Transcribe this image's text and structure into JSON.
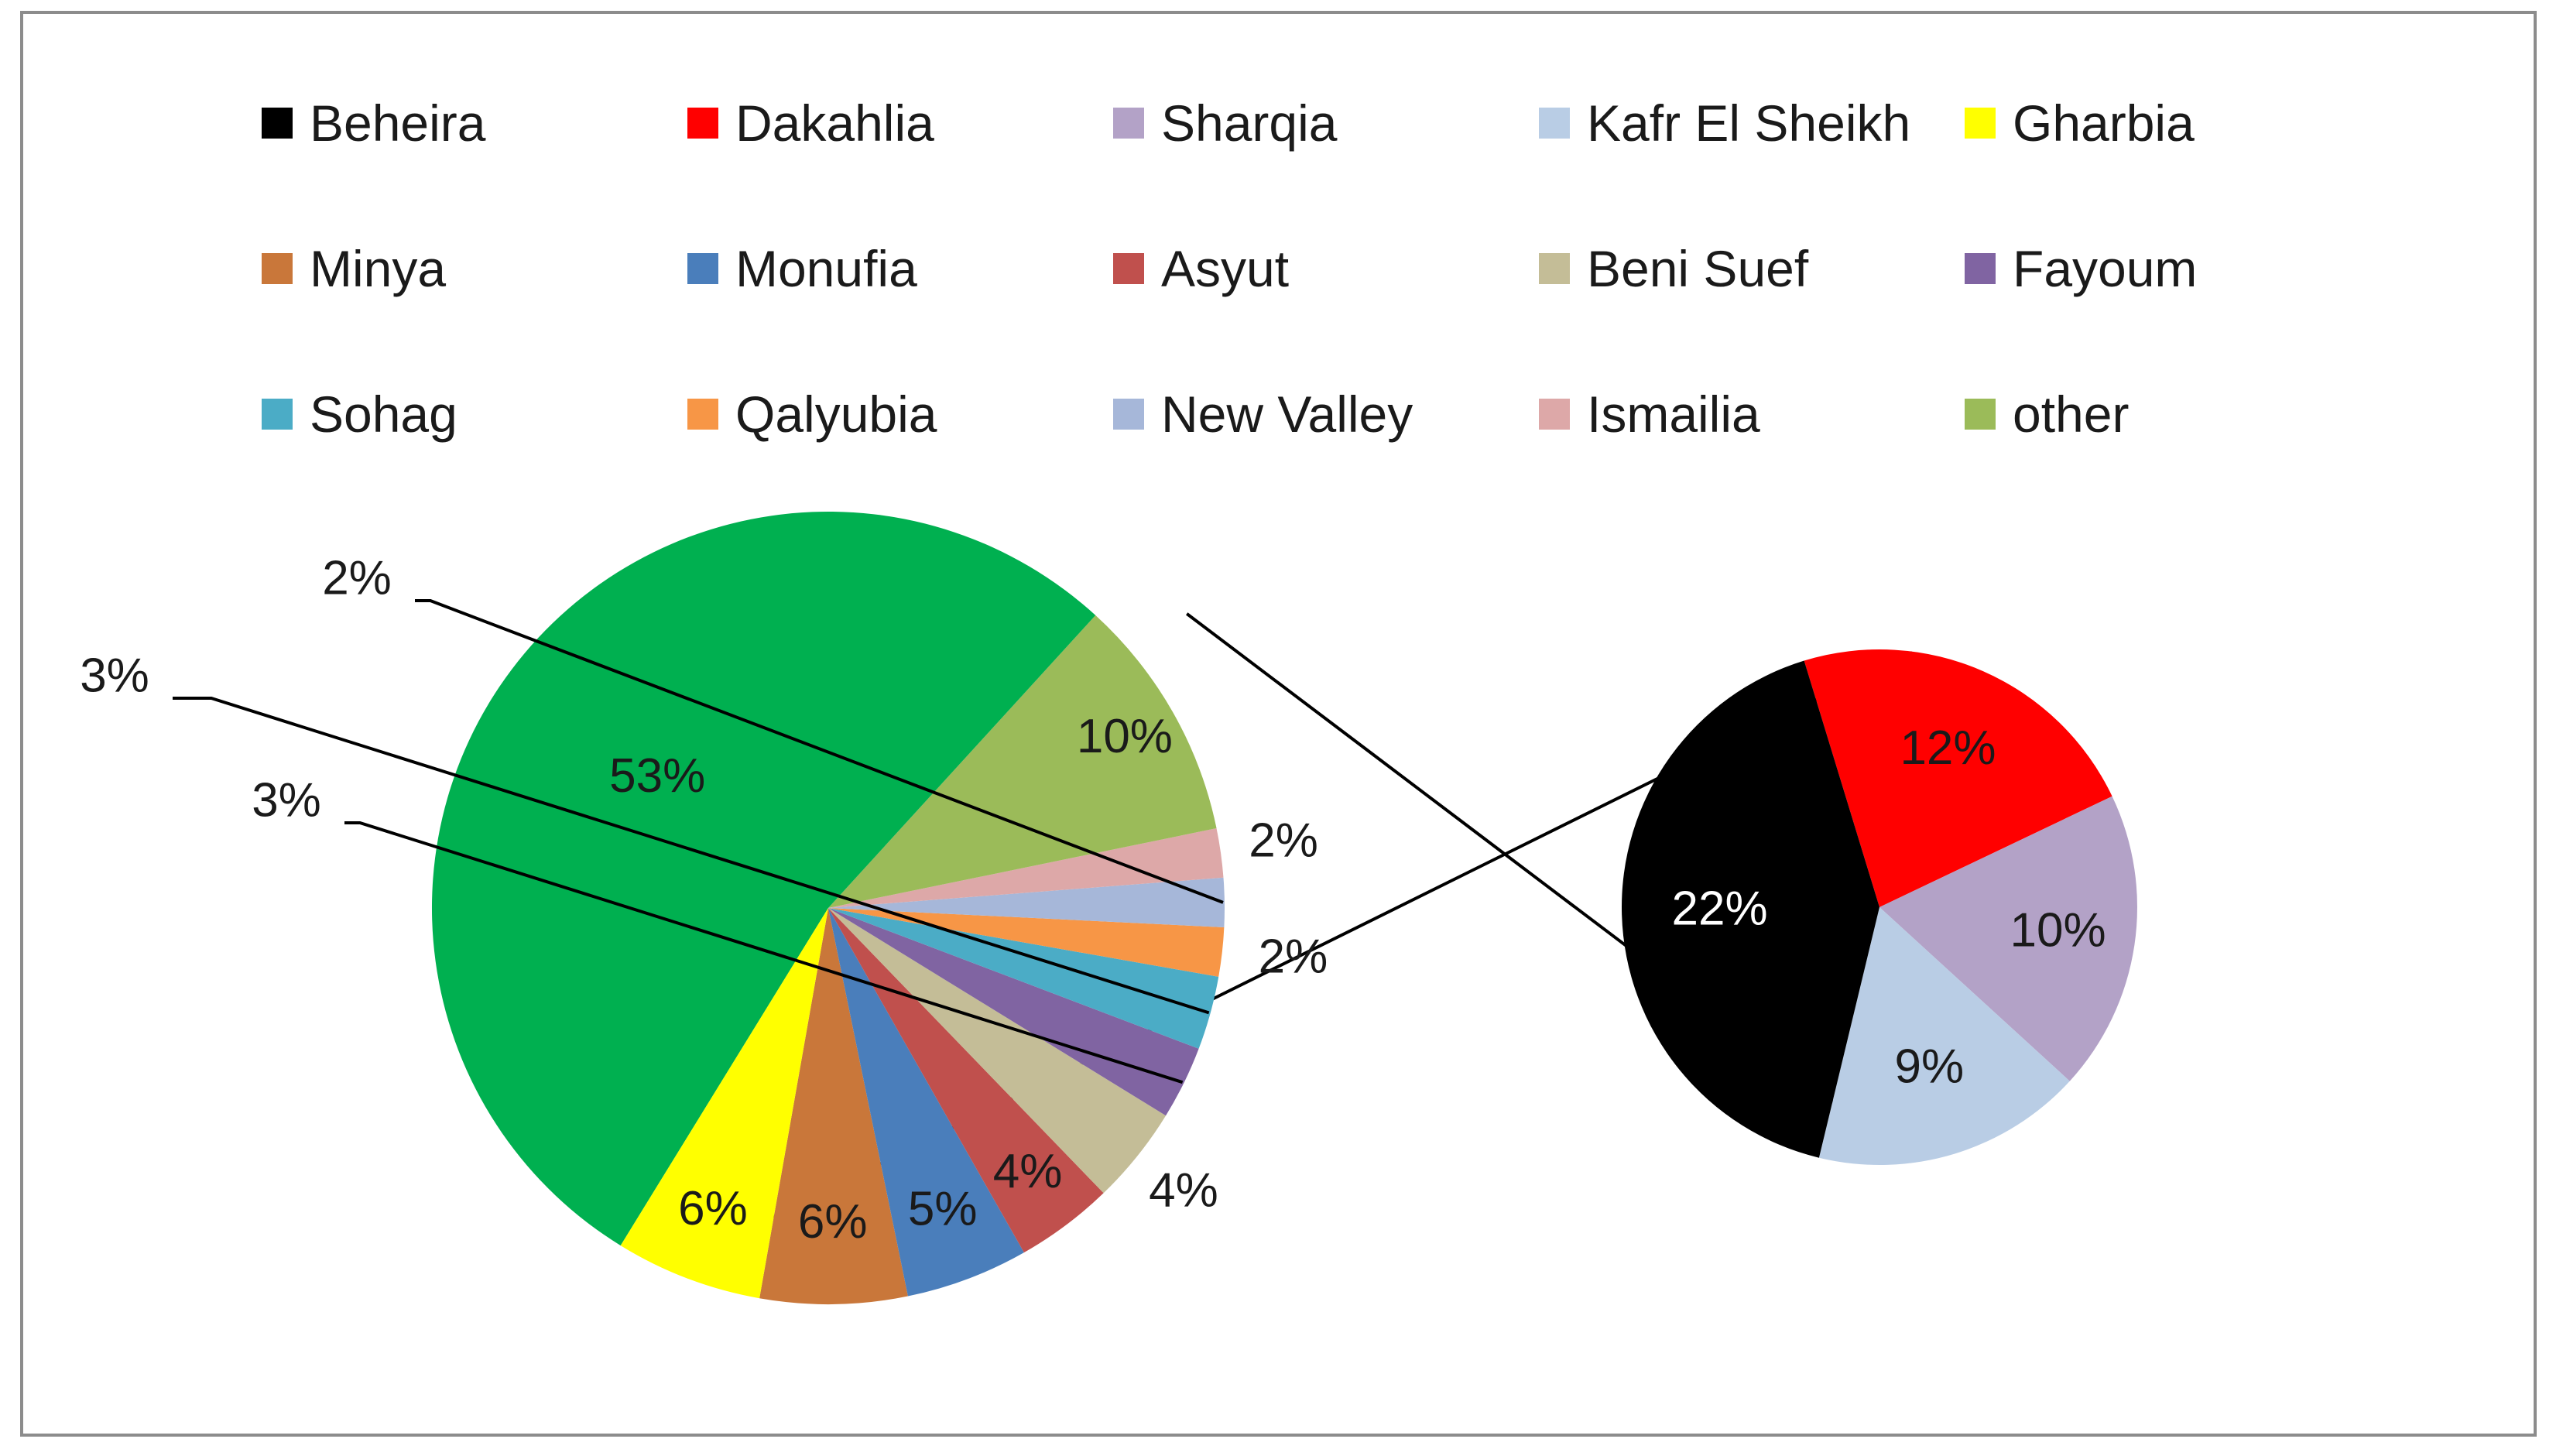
{
  "chart_data": {
    "type": "pie",
    "subtype": "pie-of-pie",
    "title": "",
    "legend_placement": "top",
    "main_pie": {
      "slices": [
        {
          "label": "Minya",
          "value": 6,
          "display": "6%",
          "color": "#C9773A"
        },
        {
          "label": "Monufia",
          "value": 5,
          "display": "5%",
          "color": "#4A7EBB"
        },
        {
          "label": "Asyut",
          "value": 4,
          "display": "4%",
          "color": "#C0504D"
        },
        {
          "label": "Beni Suef",
          "value": 4,
          "display": "4%",
          "color": "#C4BD97"
        },
        {
          "label": "Fayoum",
          "value": 3,
          "display": "3%",
          "color": "#8064A2"
        },
        {
          "label": "Sohag",
          "value": 3,
          "display": "3%",
          "color": "#4BACC6"
        },
        {
          "label": "Qalyubia",
          "value": 2,
          "display": "2%",
          "color": "#F79646"
        },
        {
          "label": "New Valley",
          "value": 2,
          "display": "2%",
          "color": "#A6B7D9"
        },
        {
          "label": "Ismailia",
          "value": 2,
          "display": "2%",
          "color": "#DDA8A8"
        },
        {
          "label": "other",
          "value": 10,
          "display": "10%",
          "color": "#9BBB59"
        },
        {
          "label": "",
          "value": 53,
          "display": "53%",
          "color": "#00B050"
        },
        {
          "label": "Gharbia",
          "value": 6,
          "display": "6%",
          "color": "#FFFF00"
        }
      ]
    },
    "secondary_pie": {
      "slices": [
        {
          "label": "Dakahlia",
          "value": 12,
          "display": "12%",
          "color": "#FF0000"
        },
        {
          "label": "Sharqia",
          "value": 10,
          "display": "10%",
          "color": "#B3A2C7"
        },
        {
          "label": "Kafr El Sheikh",
          "value": 9,
          "display": "9%",
          "color": "#B9CDE5"
        },
        {
          "label": "Beheira",
          "value": 22,
          "display": "22%",
          "color": "#000000"
        }
      ]
    },
    "legend": [
      {
        "label": "Beheira",
        "color": "#000000"
      },
      {
        "label": "Dakahlia",
        "color": "#FF0000"
      },
      {
        "label": "Sharqia",
        "color": "#B3A2C7"
      },
      {
        "label": "Kafr El Sheikh",
        "color": "#B9CDE5"
      },
      {
        "label": "Gharbia",
        "color": "#FFFF00"
      },
      {
        "label": "Minya",
        "color": "#C9773A"
      },
      {
        "label": "Monufia",
        "color": "#4A7EBB"
      },
      {
        "label": "Asyut",
        "color": "#C0504D"
      },
      {
        "label": "Beni Suef",
        "color": "#C4BD97"
      },
      {
        "label": "Fayoum",
        "color": "#8064A2"
      },
      {
        "label": "Sohag",
        "color": "#4BACC6"
      },
      {
        "label": "Qalyubia",
        "color": "#F79646"
      },
      {
        "label": "New Valley",
        "color": "#A6B7D9"
      },
      {
        "label": "Ismailia",
        "color": "#DDA8A8"
      },
      {
        "label": "other",
        "color": "#9BBB59"
      }
    ]
  }
}
